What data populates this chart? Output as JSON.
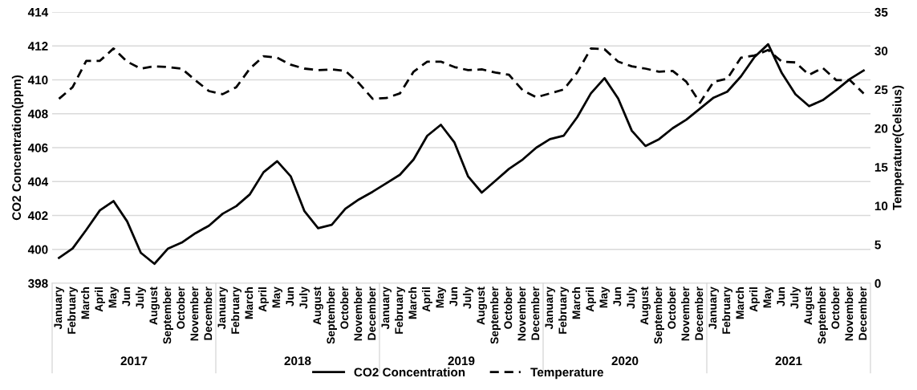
{
  "chart_data": {
    "type": "line",
    "ylabel": "CO2 Concentration(ppm)",
    "y2label": "Temperature(Celsius)",
    "categories": [
      "January",
      "February",
      "March",
      "April",
      "May",
      "Jun",
      "July",
      "August",
      "September",
      "October",
      "November",
      "December",
      "January",
      "February",
      "March",
      "April",
      "May",
      "Jun",
      "July",
      "August",
      "September",
      "October",
      "November",
      "December",
      "January",
      "February",
      "March",
      "April",
      "May",
      "Jun",
      "July",
      "August",
      "September",
      "October",
      "November",
      "December",
      "January",
      "February",
      "March",
      "April",
      "May",
      "Jun",
      "July",
      "August",
      "September",
      "October",
      "November",
      "December",
      "January",
      "February",
      "March",
      "April",
      "May",
      "Jun",
      "July",
      "August",
      "September",
      "October",
      "November",
      "December"
    ],
    "series": [
      {
        "name": "CO2 Concentration",
        "color": "#000000",
        "line_style": "solid",
        "values": [
          399.5,
          400.05,
          401.15,
          402.3,
          402.85,
          401.65,
          399.8,
          399.15,
          400.05,
          400.4,
          400.95,
          401.4,
          402.1,
          402.55,
          403.25,
          404.55,
          405.2,
          404.3,
          402.25,
          401.25,
          401.45,
          402.4,
          402.95,
          403.4,
          403.9,
          404.4,
          405.3,
          406.7,
          407.35,
          406.3,
          404.3,
          403.35,
          404.05,
          404.75,
          405.3,
          406.0,
          406.5,
          406.7,
          407.8,
          409.2,
          410.1,
          408.9,
          407.0,
          406.1,
          406.5,
          407.15,
          407.65,
          408.3,
          408.95,
          409.3,
          410.2,
          411.35,
          412.1,
          410.4,
          409.15,
          408.45,
          408.8,
          409.4,
          410.05,
          410.55
        ]
      },
      {
        "name": "Temperature",
        "color": "#000000",
        "line_style": "dashed",
        "axis": "y2",
        "values": [
          23.8,
          25.3,
          28.7,
          28.7,
          30.3,
          28.6,
          27.7,
          28.0,
          27.9,
          27.7,
          26.2,
          24.8,
          24.4,
          25.3,
          27.7,
          29.3,
          29.1,
          28.2,
          27.7,
          27.5,
          27.6,
          27.4,
          25.8,
          23.8,
          23.9,
          24.5,
          27.3,
          28.6,
          28.6,
          27.9,
          27.5,
          27.6,
          27.2,
          26.9,
          24.9,
          24.0,
          24.5,
          25.0,
          27.2,
          30.3,
          30.2,
          28.6,
          28.0,
          27.7,
          27.3,
          27.4,
          26.0,
          23.3,
          26.0,
          26.4,
          29.1,
          29.4,
          30.1,
          28.6,
          28.5,
          26.9,
          27.8,
          26.2,
          26.2,
          24.5
        ]
      }
    ],
    "ylim": [
      398,
      414
    ],
    "yticks": [
      398,
      400,
      402,
      404,
      406,
      408,
      410,
      412,
      414
    ],
    "y2lim": [
      0,
      35
    ],
    "y2ticks": [
      0,
      5,
      10,
      15,
      20,
      25,
      30,
      35
    ],
    "grid": "y",
    "legend": "bottom",
    "marker": "none",
    "annotations": [
      "2017",
      "2018",
      "2019",
      "2020",
      "2021"
    ]
  }
}
